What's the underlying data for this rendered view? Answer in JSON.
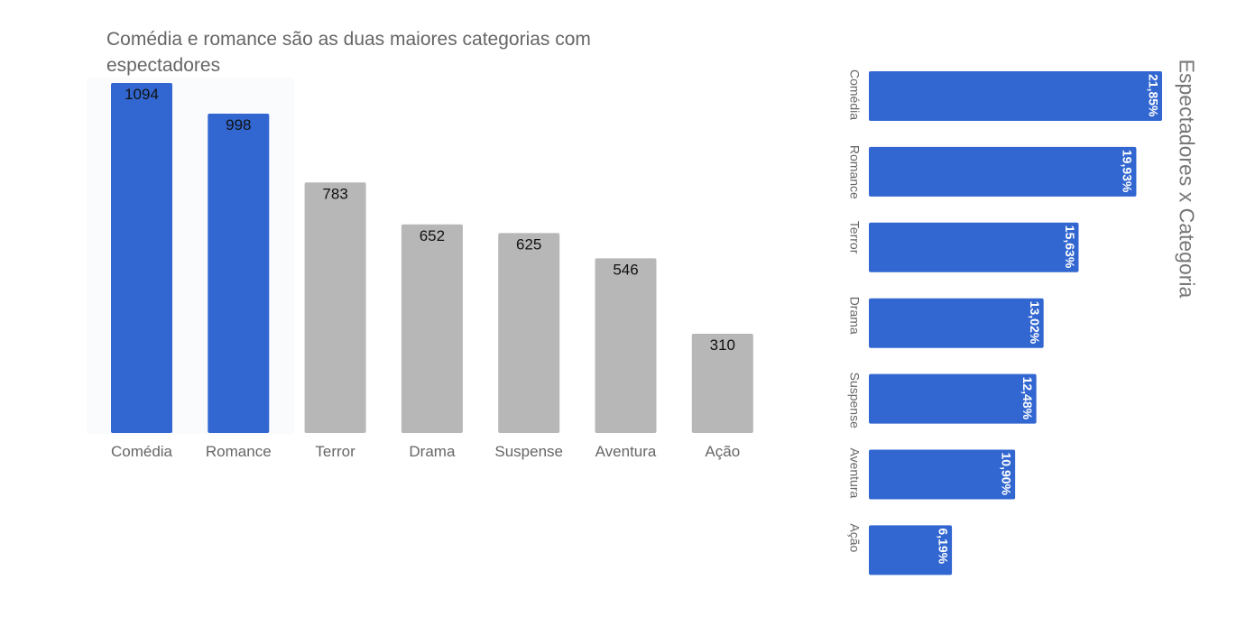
{
  "colors": {
    "highlight": "#3267d1",
    "neutral": "#b7b7b7",
    "axis_text": "#666666",
    "title_text": "#666666"
  },
  "chart_data": [
    {
      "type": "bar",
      "orientation": "vertical",
      "title": "Comédia e romance são as duas maiores categorias com espectadores",
      "xlabel": "",
      "ylabel": "",
      "categories": [
        "Comédia",
        "Romance",
        "Terror",
        "Drama",
        "Suspense",
        "Aventura",
        "Ação"
      ],
      "values": [
        1094,
        998,
        783,
        652,
        625,
        546,
        310
      ],
      "data_labels": [
        "1094",
        "998",
        "783",
        "652",
        "625",
        "546",
        "310"
      ],
      "highlighted": [
        "Comédia",
        "Romance"
      ],
      "ylim": [
        0,
        1094
      ],
      "grid": false,
      "legend": "none"
    },
    {
      "type": "bar",
      "orientation": "horizontal, rotated 90°",
      "title": "Espectadores x Categoria",
      "categories": [
        "Comédia",
        "Romance",
        "Terror",
        "Drama",
        "Suspense",
        "Aventura",
        "Ação"
      ],
      "values": [
        21.85,
        19.93,
        15.63,
        13.02,
        12.48,
        10.9,
        6.19
      ],
      "data_labels": [
        "21,85%",
        "19,93%",
        "15,63%",
        "13,02%",
        "12,48%",
        "10,90%",
        "6,19%"
      ],
      "xlim": [
        0,
        21.85
      ],
      "grid": false,
      "legend": "none"
    }
  ]
}
